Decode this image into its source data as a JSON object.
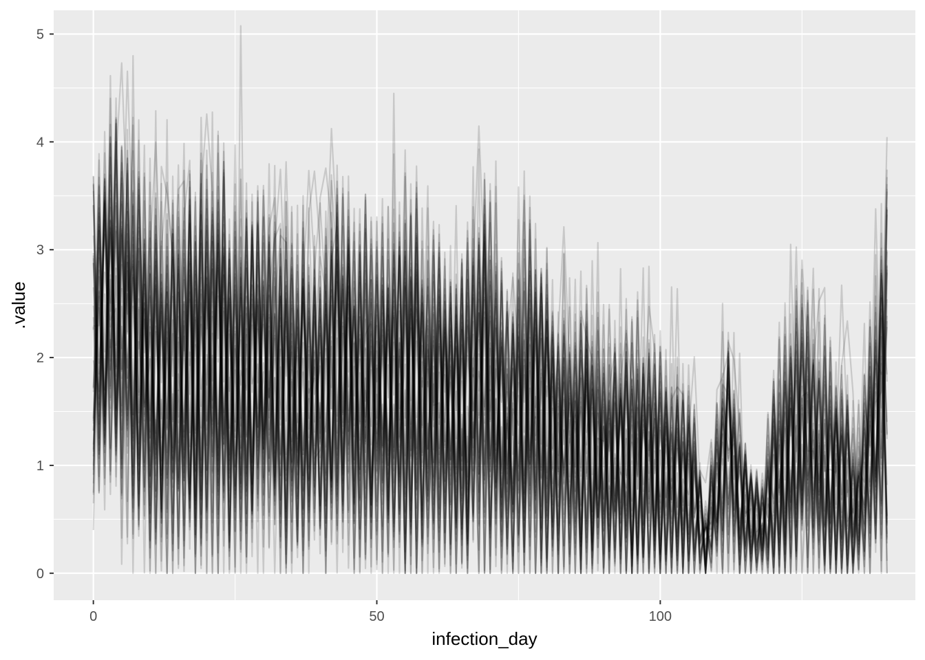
{
  "chart_data": {
    "type": "line",
    "title": "",
    "xlabel": "infection_day",
    "ylabel": ".value",
    "xlim": [
      -7,
      145
    ],
    "ylim": [
      -0.25,
      5.22
    ],
    "x_ticks": [
      0,
      50,
      100
    ],
    "x_tick_labels": [
      "0",
      "50",
      "100"
    ],
    "y_ticks": [
      0,
      1,
      2,
      3,
      4,
      5
    ],
    "y_tick_labels": [
      "0",
      "1",
      "2",
      "3",
      "4",
      "5"
    ],
    "x_minor_ticks": [
      25,
      75,
      125
    ],
    "y_minor_ticks": [
      0.5,
      1.5,
      2.5,
      3.5,
      4.5
    ],
    "grid": true,
    "legend": "none",
    "line_color": "#000000",
    "line_opacity": 0.15,
    "panel_background": "#ebebeb",
    "grid_color": "#ffffff",
    "n_draws": 40,
    "x_range": [
      0,
      140
    ],
    "description_envelope": {
      "x": [
        0,
        3,
        6,
        10,
        15,
        20,
        25,
        30,
        35,
        40,
        43,
        48,
        52,
        56,
        60,
        65,
        69,
        73,
        78,
        82,
        87,
        92,
        96,
        100,
        104,
        106,
        108,
        110,
        112,
        114,
        116,
        118,
        120,
        124,
        128,
        132,
        135,
        138,
        140
      ],
      "upper": [
        3.2,
        3.9,
        3.6,
        3.3,
        3.1,
        3.5,
        3.2,
        3.0,
        2.9,
        2.7,
        3.2,
        2.9,
        2.9,
        3.1,
        2.8,
        2.6,
        3.3,
        2.3,
        2.9,
        2.2,
        2.1,
        1.9,
        2.1,
        1.8,
        1.6,
        1.4,
        0.5,
        1.4,
        2.1,
        1.3,
        0.9,
        0.8,
        1.6,
        2.3,
        2.0,
        1.6,
        1.1,
        2.6,
        3.4
      ],
      "lower": [
        1.0,
        1.3,
        0.9,
        0.5,
        0.4,
        0.5,
        0.5,
        0.6,
        0.5,
        0.4,
        0.6,
        0.5,
        0.5,
        0.4,
        0.4,
        0.3,
        0.4,
        0.3,
        0.3,
        0.2,
        0.2,
        0.1,
        0.1,
        0.1,
        0.1,
        0.1,
        0.0,
        0.2,
        0.4,
        0.1,
        0.1,
        0.1,
        0.1,
        0.2,
        0.1,
        0.1,
        0.1,
        0.4,
        0.3
      ]
    }
  }
}
